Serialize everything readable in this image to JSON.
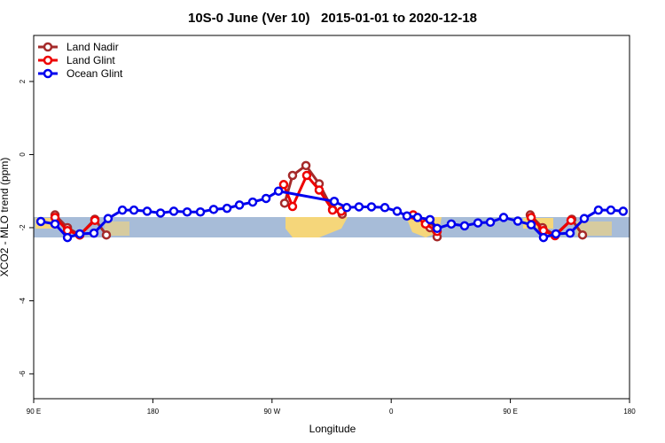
{
  "chart_data": {
    "type": "line",
    "title": "10S-0 June (Ver 10)   2015-01-01 to 2020-12-18",
    "x_label": "Longitude",
    "y_label": "XCO2 - MLO trend (ppm)",
    "xlim": [
      90,
      540
    ],
    "ylim": [
      -6.68,
      3.26
    ],
    "xticks": [
      {
        "value": 90,
        "label": "90 E"
      },
      180,
      {
        "value": 270,
        "label": "90 W"
      },
      {
        "value": 360,
        "label": "0"
      },
      {
        "value": 450,
        "label": "90 E"
      },
      {
        "value": 540,
        "label": "180"
      }
    ],
    "yticks": [
      -6,
      -4,
      -2,
      0,
      2
    ],
    "legend": "top-left",
    "series": [
      {
        "name": "Land Nadir",
        "color": "#a52a2a",
        "x": [
          106.1,
          115.5,
          124.8,
          136.2,
          144.9,
          null,
          279.5,
          285.5,
          295.6,
          305.6,
          315.7,
          323.0,
          null,
          389.3,
          394.7,
          null,
          465.0,
          474.3,
          483.7,
          496.4,
          504.5
        ],
        "values": [
          -1.65,
          -2.0,
          -2.2,
          -1.77,
          -2.2,
          null,
          -1.33,
          -0.57,
          -0.3,
          -0.8,
          -1.5,
          -1.63,
          null,
          -2.0,
          -2.25,
          null,
          -1.65,
          -2.0,
          -2.2,
          -1.77,
          -2.2
        ]
      },
      {
        "name": "Land Glint",
        "color": "#ee0000",
        "x": [
          106.1,
          115.5,
          124.8,
          136.2,
          null,
          278.8,
          285.5,
          296.2,
          305.6,
          315.7,
          322.3,
          null,
          376.6,
          385.9,
          394.7,
          null,
          465.7,
          475.0,
          483.7,
          495.8
        ],
        "values": [
          -1.72,
          -2.08,
          -2.2,
          -1.8,
          null,
          -0.82,
          -1.42,
          -0.57,
          -0.97,
          -1.52,
          -1.55,
          null,
          -1.65,
          -1.9,
          -2.1,
          null,
          -1.72,
          -2.08,
          -2.22,
          -1.8
        ]
      },
      {
        "name": "Ocean Glint",
        "color": "#0000ee",
        "x": [
          95.4,
          106.1,
          115.5,
          124.8,
          135.5,
          146.2,
          157.0,
          165.7,
          175.7,
          185.8,
          195.8,
          205.9,
          215.9,
          225.9,
          236.0,
          245.4,
          255.4,
          265.5,
          274.9,
          317.0,
          326.4,
          335.7,
          345.1,
          355.2,
          364.5,
          371.9,
          379.9,
          389.3,
          394.7,
          405.4,
          415.4,
          425.5,
          434.9,
          444.9,
          455.6,
          465.7,
          475.0,
          484.4,
          495.1,
          505.8,
          516.5,
          525.9,
          535.2
        ],
        "values": [
          -1.83,
          -1.9,
          -2.27,
          -2.17,
          -2.15,
          -1.75,
          -1.52,
          -1.52,
          -1.55,
          -1.6,
          -1.55,
          -1.57,
          -1.57,
          -1.5,
          -1.47,
          -1.38,
          -1.3,
          -1.2,
          -1.0,
          -1.28,
          -1.45,
          -1.43,
          -1.43,
          -1.45,
          -1.55,
          -1.68,
          -1.72,
          -1.78,
          -2.02,
          -1.9,
          -1.95,
          -1.87,
          -1.85,
          -1.72,
          -1.82,
          -1.92,
          -2.27,
          -2.17,
          -2.15,
          -1.75,
          -1.52,
          -1.52,
          -1.55
        ]
      }
    ]
  }
}
